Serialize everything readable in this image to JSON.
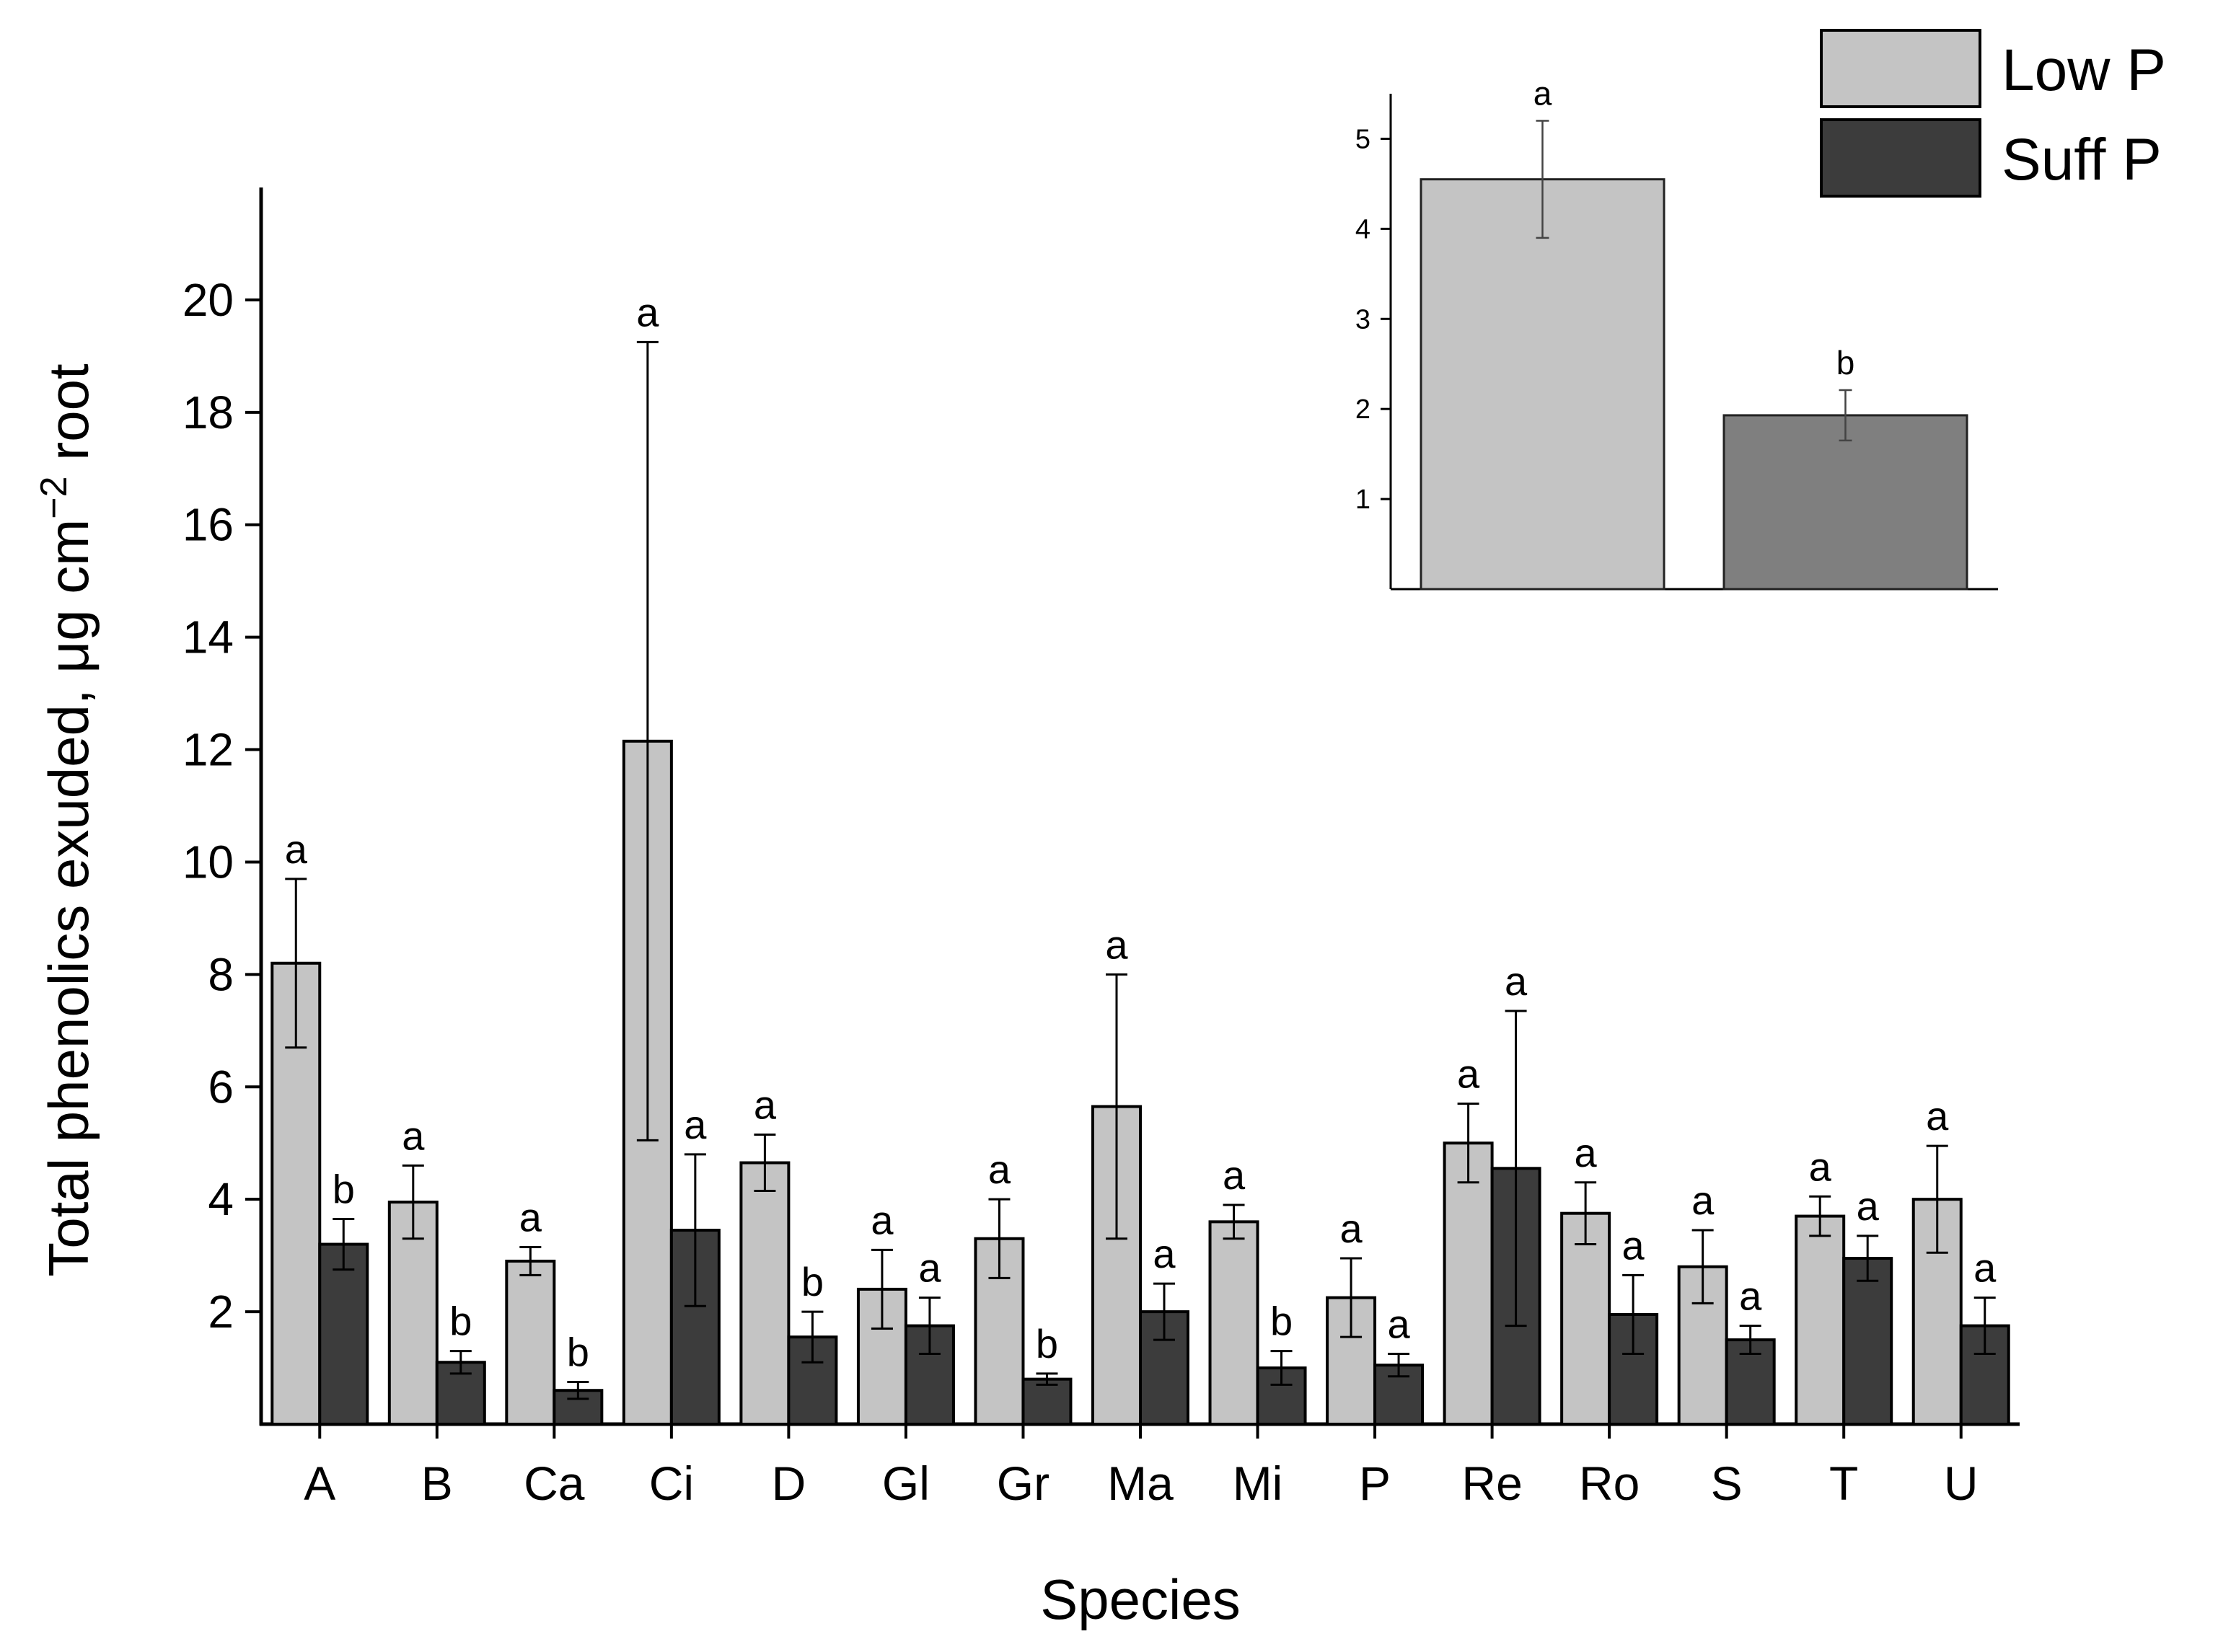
{
  "chart_data": [
    {
      "id": "main",
      "type": "bar",
      "title": "",
      "xlabel": "Species",
      "ylabel": "Total phenolics exuded, μg cm",
      "ylabel_superscript": "−2",
      "ylabel_suffix": " root",
      "ylim": [
        0,
        22
      ],
      "yticks": [
        2,
        4,
        6,
        8,
        10,
        12,
        14,
        16,
        18,
        20
      ],
      "categories": [
        "A",
        "B",
        "Ca",
        "Ci",
        "D",
        "Gl",
        "Gr",
        "Ma",
        "Mi",
        "P",
        "Re",
        "Ro",
        "S",
        "T",
        "U"
      ],
      "series": [
        {
          "name": "Low P",
          "color": "#c4c4c4",
          "values": [
            8.2,
            3.95,
            2.9,
            12.15,
            4.65,
            2.4,
            3.3,
            5.65,
            3.6,
            2.25,
            5.0,
            3.75,
            2.8,
            3.7,
            4.0
          ],
          "errors": [
            1.5,
            0.65,
            0.25,
            7.1,
            0.5,
            0.7,
            0.7,
            2.35,
            0.3,
            0.7,
            0.7,
            0.55,
            0.65,
            0.35,
            0.95
          ],
          "labels": [
            "a",
            "a",
            "a",
            "a",
            "a",
            "a",
            "a",
            "a",
            "a",
            "a",
            "a",
            "a",
            "a",
            "a",
            "a"
          ]
        },
        {
          "name": "Suff P",
          "color": "#3c3c3c",
          "values": [
            3.2,
            1.1,
            0.6,
            3.45,
            1.55,
            1.75,
            0.8,
            2.0,
            1.0,
            1.05,
            4.55,
            1.95,
            1.5,
            2.95,
            1.75
          ],
          "errors": [
            0.45,
            0.2,
            0.15,
            1.35,
            0.45,
            0.5,
            0.1,
            0.5,
            0.3,
            0.2,
            2.8,
            0.7,
            0.25,
            0.4,
            0.5
          ],
          "labels": [
            "b",
            "b",
            "b",
            "a",
            "b",
            "a",
            "b",
            "a",
            "b",
            "a",
            "a",
            "a",
            "a",
            "a",
            "a"
          ]
        }
      ],
      "legend": {
        "position": "top-right",
        "entries": [
          "Low P",
          "Suff P"
        ]
      }
    },
    {
      "id": "inset",
      "type": "bar",
      "title": "",
      "xlabel": "",
      "ylabel": "",
      "ylim": [
        0,
        5.5
      ],
      "yticks": [
        1,
        2,
        3,
        4,
        5
      ],
      "categories": [
        "Low P",
        "Suff P"
      ],
      "values": [
        4.55,
        1.93
      ],
      "errors": [
        0.65,
        0.28
      ],
      "labels": [
        "a",
        "b"
      ],
      "colors": [
        "#c4c4c4",
        "#7f7f7f"
      ]
    }
  ]
}
